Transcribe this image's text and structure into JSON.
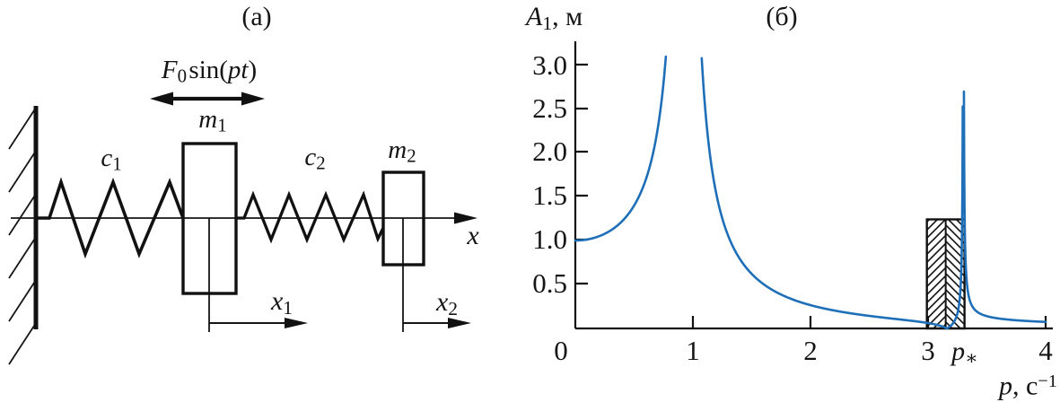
{
  "panel_a": {
    "title": "(a)",
    "force_label_html": "<i>F</i><sub>0</sub>&#8202;sin(<i>pt</i>)",
    "mass1_html": "<i>m</i><sub>1</sub>",
    "mass2_html": "<i>m</i><sub>2</sub>",
    "spring1_html": "<i>c</i><sub>1</sub>",
    "spring2_html": "<i>c</i><sub>2</sub>",
    "axis_x_html": "<i>x</i>",
    "coord1_html": "<i>x</i><sub>1</sub>",
    "coord2_html": "<i>x</i><sub>2</sub>"
  },
  "panel_b": {
    "title": "(б)",
    "ylabel_html": "<i>A</i><sub>1</sub>, м",
    "xlabel_html": "<i>p</i>, с<sup>−1</sup>",
    "special_tick_html": "<i>p</i><sub>∗</sub>"
  },
  "chart_data": {
    "type": "line",
    "title": "(б)",
    "ylabel": "A1, m (А₁, м)",
    "xlabel": "p, s^-1 (р, с⁻¹)",
    "xlim": [
      0,
      4
    ],
    "ylim": [
      0,
      3.1
    ],
    "x_tick_labels": [
      "0",
      "1",
      "2",
      "3",
      "4"
    ],
    "y_tick_labels_top_down": [
      "3.0",
      "2.5",
      "2.0",
      "1.5",
      "1.0",
      "0.5"
    ],
    "curve_color": "#1e6fb8",
    "model": {
      "static_value": 1.0,
      "resonance_1": 0.935,
      "resonance_2": 3.3,
      "antiresonance": 3.16,
      "clip": 3.102
    },
    "key_points": [
      [
        0,
        1.0
      ],
      [
        0.37,
        1.15
      ],
      [
        0.55,
        1.32
      ],
      [
        0.72,
        1.87
      ],
      [
        0.77,
        3.1
      ],
      [
        1.07,
        3.1
      ],
      [
        1.26,
        1.42
      ],
      [
        1.5,
        0.78
      ],
      [
        2.0,
        0.27
      ],
      [
        2.5,
        0.13
      ],
      [
        3.0,
        0.07
      ],
      [
        3.16,
        0.0
      ],
      [
        3.29,
        3.1
      ],
      [
        3.31,
        3.1
      ],
      [
        3.5,
        0.2
      ],
      [
        4.0,
        0.08
      ]
    ],
    "hatched_band": {
      "x_from": 2.99,
      "x_to": 3.31,
      "height": 1.24
    },
    "legend": []
  }
}
